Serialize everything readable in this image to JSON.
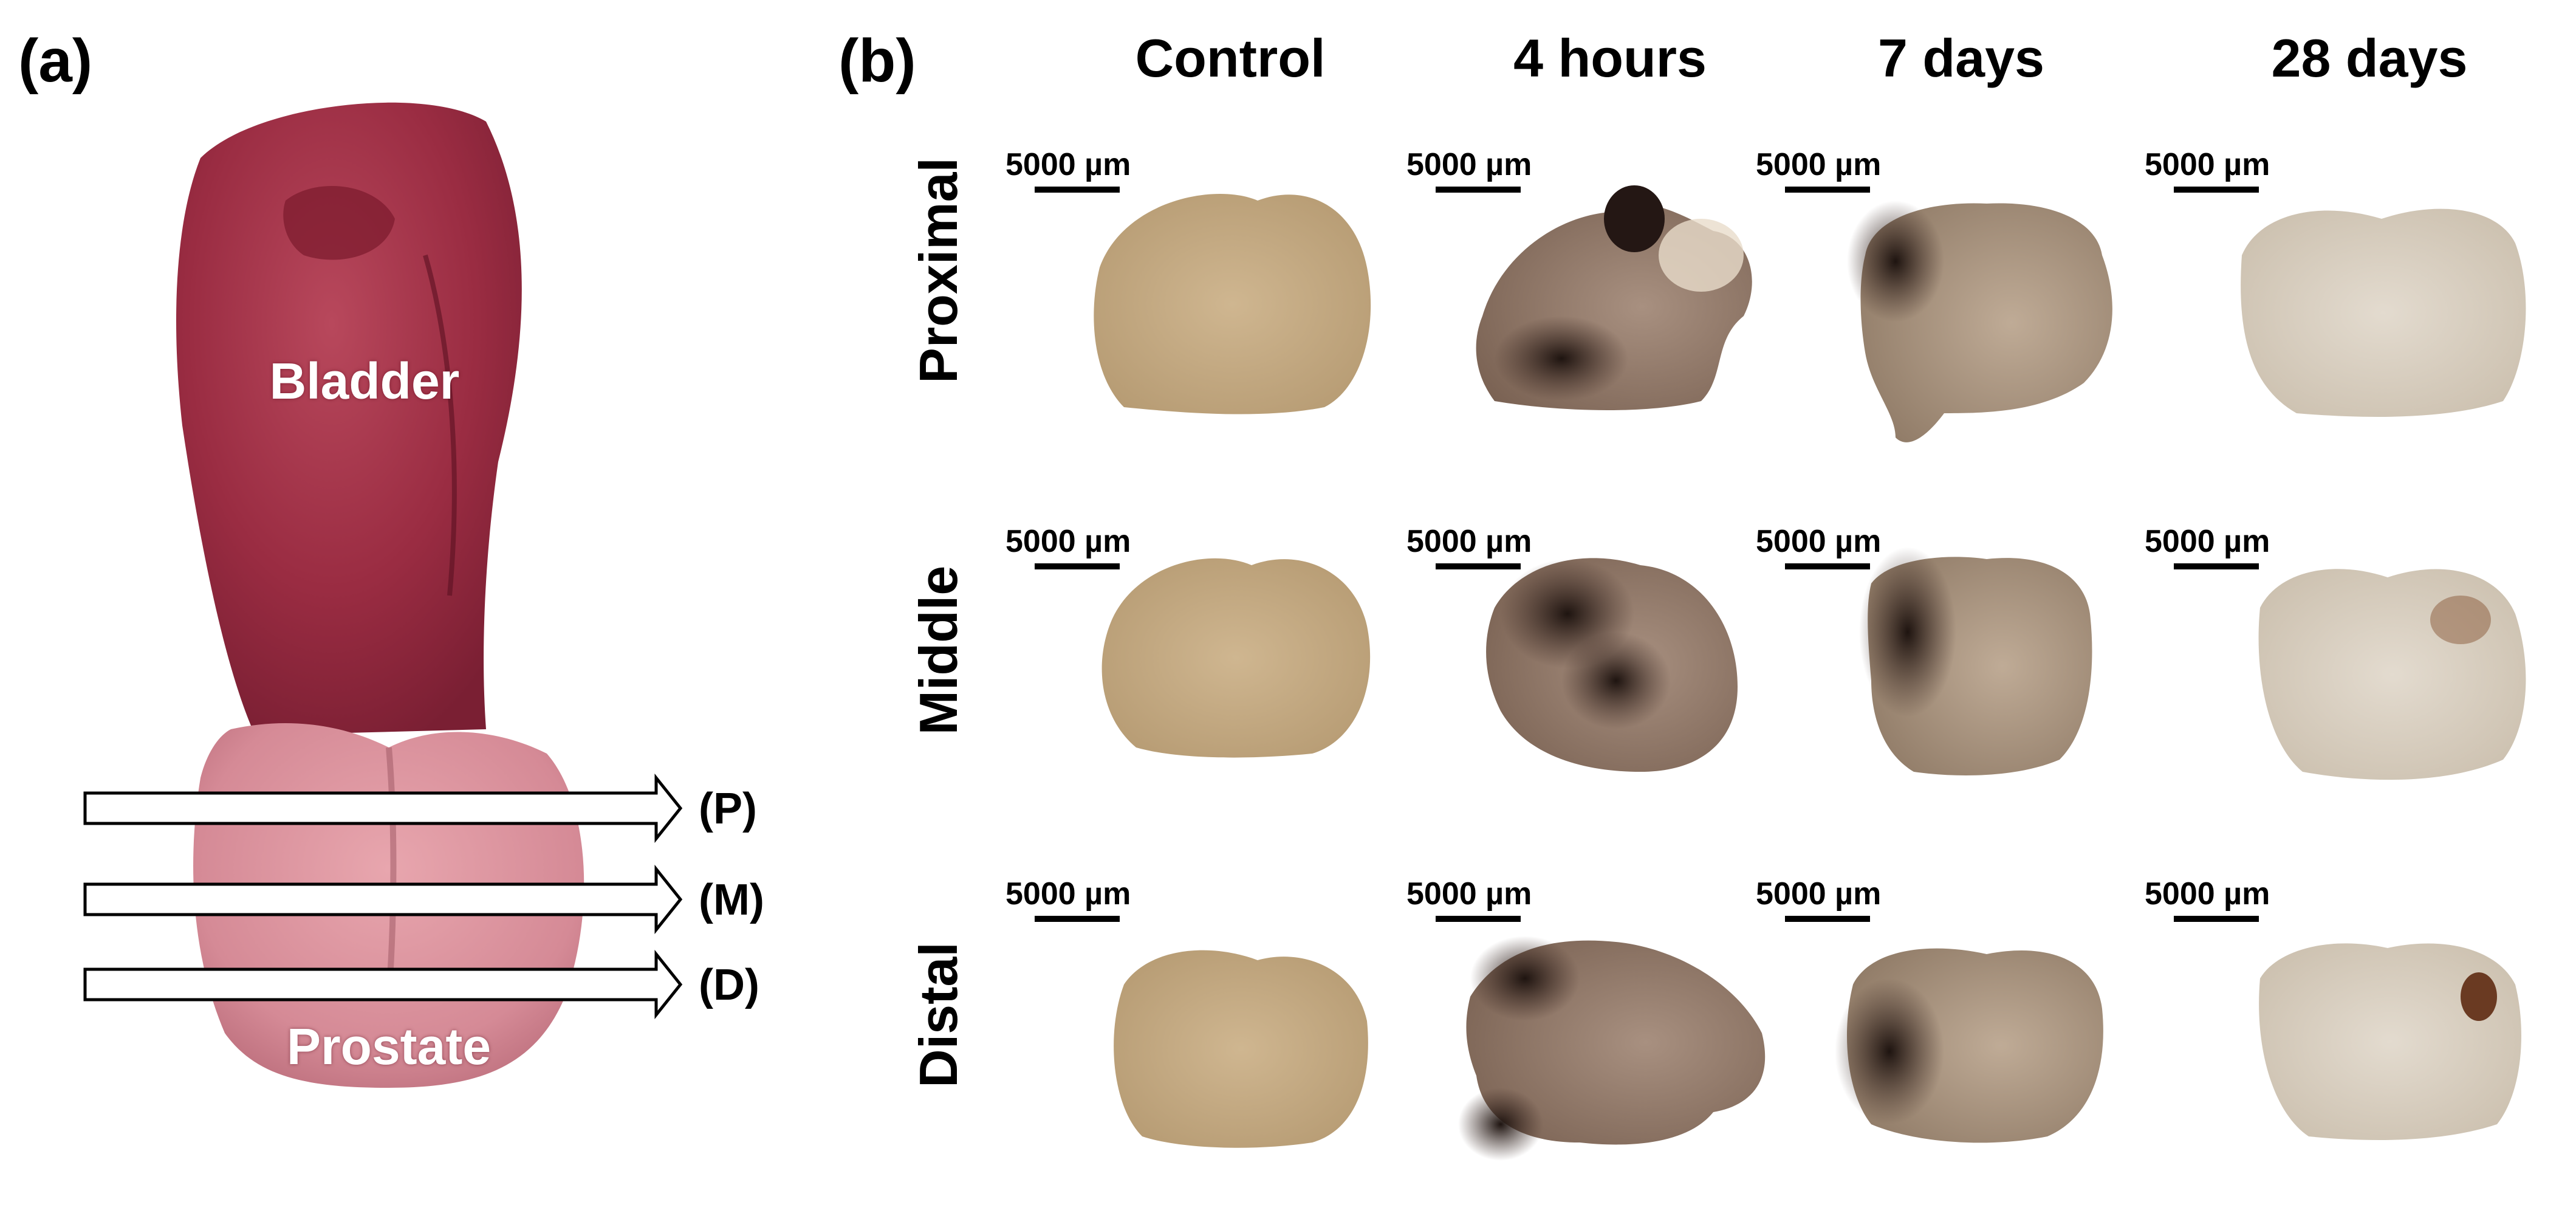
{
  "panel_a": {
    "label": "(a)",
    "bladder_label": "Bladder",
    "prostate_label": "Prostate",
    "slice_markers": [
      "(P)",
      "(M)",
      "(D)"
    ]
  },
  "panel_b": {
    "label": "(b)",
    "columns": [
      "Control",
      "4 hours",
      "7 days",
      "28 days"
    ],
    "rows": [
      "Proximal",
      "Middle",
      "Distal"
    ],
    "scale_bar_text": "5000 µm"
  },
  "colors": {
    "bladder": "#9e2f45",
    "prostate": "#d58c97",
    "tissue_control": "#c7ad86",
    "tissue_lesion": "#3a2620",
    "tissue_28d": "#d9d0c2"
  }
}
